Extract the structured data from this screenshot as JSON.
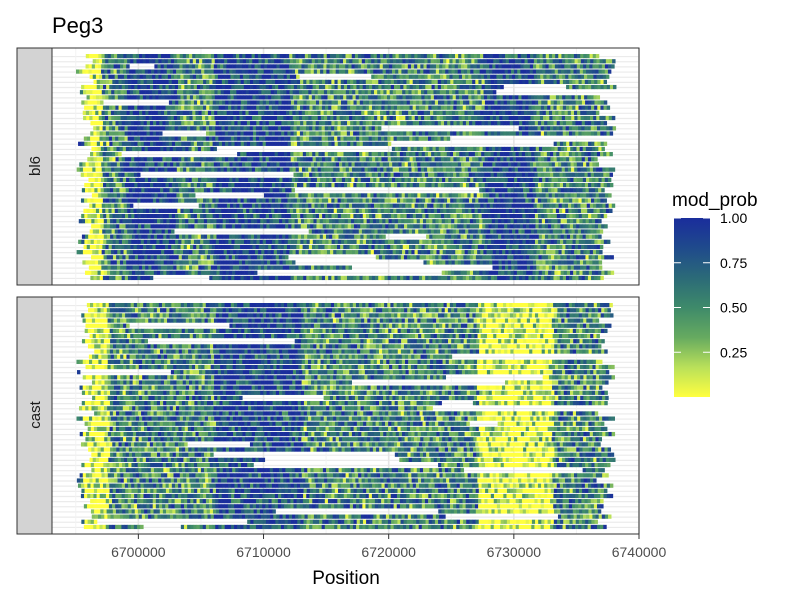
{
  "chart_data": {
    "type": "heatmap",
    "title": "Peg3",
    "xlabel": "Position",
    "ylabel": "",
    "x_range": [
      6693100,
      6740000
    ],
    "x_ticks": [
      6700000,
      6710000,
      6720000,
      6730000,
      6740000
    ],
    "x_tick_labels": [
      "6700000",
      "6710000",
      "6720000",
      "6730000",
      "6740000"
    ],
    "grid": true,
    "panels": [
      {
        "label": "bl6",
        "n_reads": 44,
        "low_regions": [
          [
            6695500,
            6697000
          ]
        ],
        "high_regions": [
          [
            6699000,
            6703000
          ],
          [
            6706000,
            6712000
          ],
          [
            6727500,
            6731500
          ]
        ],
        "typical_span": [
          6695000,
          6738000
        ]
      },
      {
        "label": "cast",
        "n_reads": 44,
        "low_regions": [
          [
            6695500,
            6697500
          ],
          [
            6727000,
            6733000
          ]
        ],
        "high_regions": [
          [
            6706000,
            6713000
          ],
          [
            6709000,
            6712000
          ]
        ],
        "typical_span": [
          6695000,
          6738000
        ]
      }
    ],
    "colorbar": {
      "title": "mod_prob",
      "min": 0,
      "max": 1,
      "ticks": [
        0.25,
        0.5,
        0.75,
        1.0
      ],
      "tick_labels": [
        "0.25",
        "0.50",
        "0.75",
        "1.00"
      ],
      "placement": "right",
      "colors": [
        "#ffff40",
        "#b9e05a",
        "#66aa60",
        "#3e8a6a",
        "#2b6a78",
        "#1f4a8c",
        "#1a2d9c"
      ]
    }
  }
}
